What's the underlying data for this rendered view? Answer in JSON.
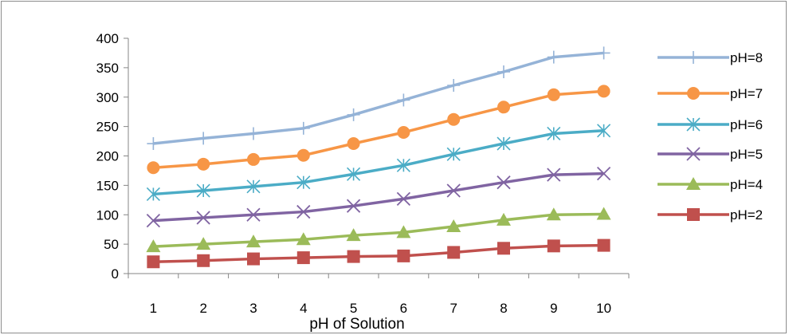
{
  "chart_data": {
    "type": "line",
    "title": "",
    "xlabel": "pH of Solution",
    "ylabel": "",
    "categories": [
      "1",
      "2",
      "3",
      "4",
      "5",
      "6",
      "7",
      "8",
      "9",
      "10"
    ],
    "ylim": [
      0,
      400
    ],
    "yticks": [
      0,
      50,
      100,
      150,
      200,
      250,
      300,
      350,
      400
    ],
    "grid": false,
    "legend_position": "right",
    "series": [
      {
        "name": "pH=8",
        "color": "#95B3D7",
        "marker": "plus",
        "values": [
          221,
          230,
          238,
          247,
          270,
          295,
          320,
          343,
          368,
          375
        ]
      },
      {
        "name": "pH=7",
        "color": "#F79646",
        "marker": "circle",
        "values": [
          180,
          186,
          194,
          201,
          221,
          240,
          262,
          283,
          304,
          310
        ]
      },
      {
        "name": "pH=6",
        "color": "#4BACC6",
        "marker": "asterisk",
        "values": [
          135,
          141,
          148,
          155,
          169,
          184,
          203,
          221,
          238,
          243
        ]
      },
      {
        "name": "pH=5",
        "color": "#8064A2",
        "marker": "x",
        "values": [
          90,
          95,
          100,
          105,
          115,
          127,
          141,
          155,
          168,
          170
        ]
      },
      {
        "name": "pH=4",
        "color": "#9BBB59",
        "marker": "triangle",
        "values": [
          46,
          50,
          54,
          58,
          65,
          70,
          80,
          91,
          100,
          101
        ]
      },
      {
        "name": "pH=2",
        "color": "#C0504D",
        "marker": "square",
        "values": [
          20,
          22,
          25,
          27,
          29,
          30,
          36,
          43,
          47,
          48
        ]
      }
    ]
  }
}
